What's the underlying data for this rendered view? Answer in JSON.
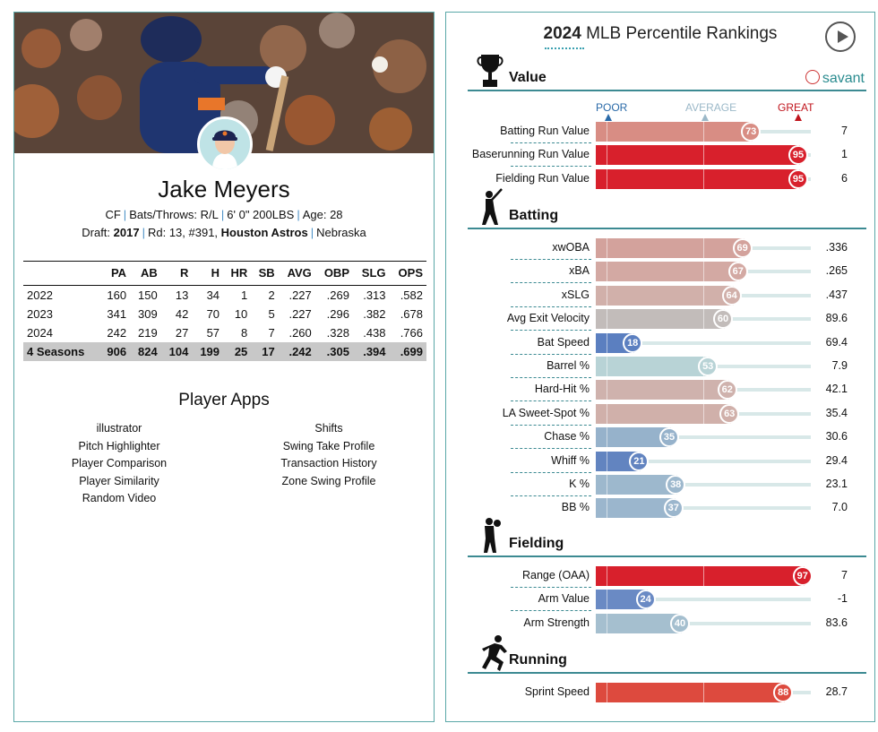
{
  "player": {
    "name": "Jake Meyers",
    "position": "CF",
    "bats_throws": "Bats/Throws: R/L",
    "height_weight": "6' 0\" 200LBS",
    "age": "Age: 28",
    "draft_label": "Draft:",
    "draft_year": "2017",
    "draft_round": "Rd: 13, #391,",
    "draft_team": "Houston Astros",
    "school": "Nebraska"
  },
  "stats": {
    "columns": [
      "",
      "PA",
      "AB",
      "R",
      "H",
      "HR",
      "SB",
      "AVG",
      "OBP",
      "SLG",
      "OPS"
    ],
    "rows": [
      [
        "2022",
        "160",
        "150",
        "13",
        "34",
        "1",
        "2",
        ".227",
        ".269",
        ".313",
        ".582"
      ],
      [
        "2023",
        "341",
        "309",
        "42",
        "70",
        "10",
        "5",
        ".227",
        ".296",
        ".382",
        ".678"
      ],
      [
        "2024",
        "242",
        "219",
        "27",
        "57",
        "8",
        "7",
        ".260",
        ".328",
        ".438",
        ".766"
      ]
    ],
    "total": [
      "4 Seasons",
      "906",
      "824",
      "104",
      "199",
      "25",
      "17",
      ".242",
      ".305",
      ".394",
      ".699"
    ]
  },
  "apps": {
    "title": "Player Apps",
    "left": [
      "illustrator",
      "Pitch Highlighter",
      "Player Comparison",
      "Player Similarity",
      "Random Video"
    ],
    "right": [
      "Shifts",
      "Swing Take Profile",
      "Transaction History",
      "Zone Swing Profile"
    ]
  },
  "chart_data": {
    "type": "bar",
    "title_year": "2024",
    "title_rest": "MLB Percentile Rankings",
    "brand": "savant",
    "scale": {
      "poor": "POOR",
      "average": "AVERAGE",
      "great": "GREAT"
    },
    "xlim": [
      0,
      100
    ],
    "colors": {
      "poor": "#5b7fc0",
      "average": "#c0c0c0",
      "great": "#d8202c",
      "poor_label": "#2a6aa8",
      "average_label": "#9bb8c8",
      "great_label": "#c0141c"
    },
    "sections": [
      {
        "name": "Value",
        "metrics": [
          {
            "label": "Batting Run Value",
            "percentile": 73,
            "value": "7",
            "color": "#d88d84"
          },
          {
            "label": "Baserunning Run Value",
            "percentile": 95,
            "value": "1",
            "color": "#d8202c"
          },
          {
            "label": "Fielding Run Value",
            "percentile": 95,
            "value": "6",
            "color": "#d8202c"
          }
        ]
      },
      {
        "name": "Batting",
        "metrics": [
          {
            "label": "xwOBA",
            "percentile": 69,
            "value": ".336",
            "color": "#d3a29c"
          },
          {
            "label": "xBA",
            "percentile": 67,
            "value": ".265",
            "color": "#d3a9a3"
          },
          {
            "label": "xSLG",
            "percentile": 64,
            "value": ".437",
            "color": "#d1b0aa"
          },
          {
            "label": "Avg Exit Velocity",
            "percentile": 60,
            "value": "89.6",
            "color": "#c2bcba"
          },
          {
            "label": "Bat Speed",
            "percentile": 18,
            "value": "69.4",
            "color": "#5b7fc0"
          },
          {
            "label": "Barrel %",
            "percentile": 53,
            "value": "7.9",
            "color": "#b8d3d6"
          },
          {
            "label": "Hard-Hit %",
            "percentile": 62,
            "value": "42.1",
            "color": "#cfb2ad"
          },
          {
            "label": "LA Sweet-Spot %",
            "percentile": 63,
            "value": "35.4",
            "color": "#d0b0aa"
          },
          {
            "label": "Chase %",
            "percentile": 35,
            "value": "30.6",
            "color": "#96b2cb"
          },
          {
            "label": "Whiff %",
            "percentile": 21,
            "value": "29.4",
            "color": "#6284c0"
          },
          {
            "label": "K %",
            "percentile": 38,
            "value": "23.1",
            "color": "#9db8cd"
          },
          {
            "label": "BB %",
            "percentile": 37,
            "value": "7.0",
            "color": "#9bb6cd"
          }
        ]
      },
      {
        "name": "Fielding",
        "metrics": [
          {
            "label": "Range (OAA)",
            "percentile": 97,
            "value": "7",
            "color": "#d8202c"
          },
          {
            "label": "Arm Value",
            "percentile": 24,
            "value": "-1",
            "color": "#6a8ac4"
          },
          {
            "label": "Arm Strength",
            "percentile": 40,
            "value": "83.6",
            "color": "#a5bfcf"
          }
        ]
      },
      {
        "name": "Running",
        "metrics": [
          {
            "label": "Sprint Speed",
            "percentile": 88,
            "value": "28.7",
            "color": "#dd4a3e"
          }
        ]
      }
    ]
  }
}
